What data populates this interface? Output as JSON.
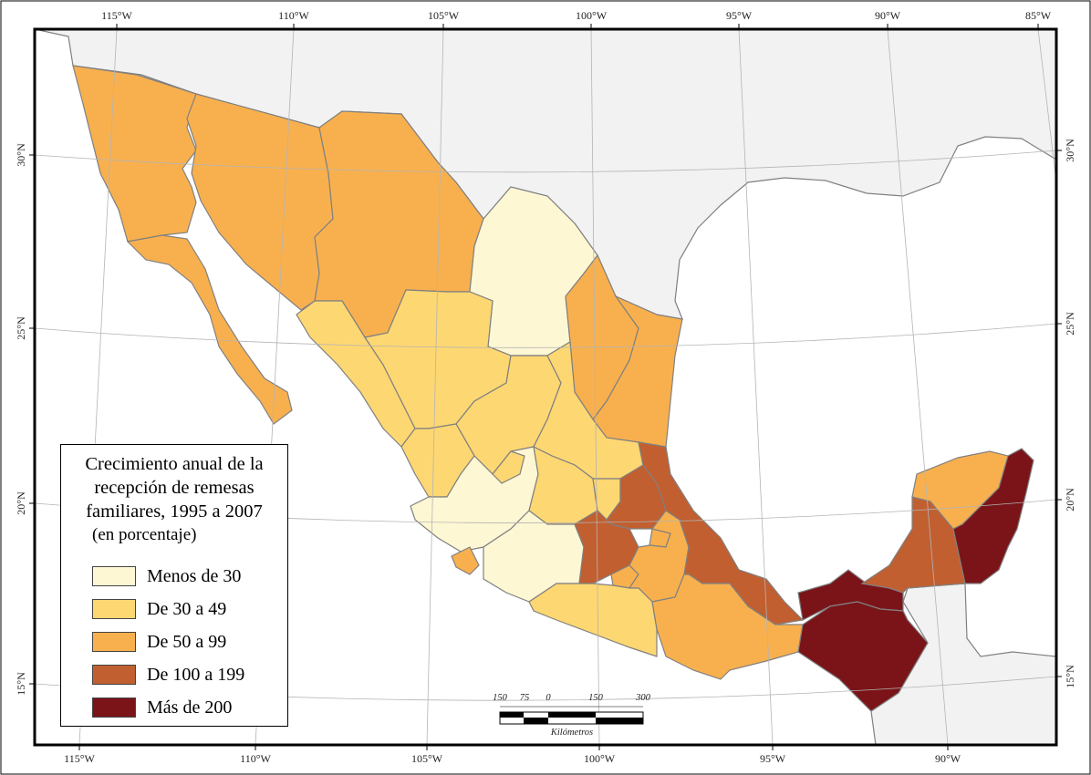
{
  "map": {
    "top_ticks": [
      "115°W",
      "110°W",
      "105°W",
      "100°W",
      "95°W",
      "90°W",
      "85°W"
    ],
    "bottom_ticks": [
      "115°W",
      "110°W",
      "105°W",
      "100°W",
      "95°W",
      "90°W"
    ],
    "left_ticks": [
      "30°N",
      "25°N",
      "20°N",
      "15°N"
    ],
    "right_ticks": [
      "30°N",
      "25°N",
      "20°N",
      "15°N"
    ],
    "colors": {
      "ocean": "#ffffff",
      "other_land": "#f2f2f2",
      "border": "#808080",
      "class_1": "#fdf7d4",
      "class_2": "#fdd772",
      "class_3": "#f8b04e",
      "class_4": "#c15f30",
      "class_5": "#7a1418"
    }
  },
  "legend": {
    "title": "Crecimiento anual de la recepción de remesas familiares, 1995 a 2007",
    "subtitle": "(en porcentaje)",
    "items": [
      {
        "label": "Menos de 30",
        "color": "#fdf7d4"
      },
      {
        "label": "De 30 a 49",
        "color": "#fdd772"
      },
      {
        "label": "De 50 a 99",
        "color": "#f8b04e"
      },
      {
        "label": "De 100 a 199",
        "color": "#c15f30"
      },
      {
        "label": "Más de 200",
        "color": "#7a1418"
      }
    ]
  },
  "scale_bar": {
    "labels": [
      "150",
      "75",
      "0",
      "150",
      "300"
    ],
    "unit": "Kilómetros"
  }
}
